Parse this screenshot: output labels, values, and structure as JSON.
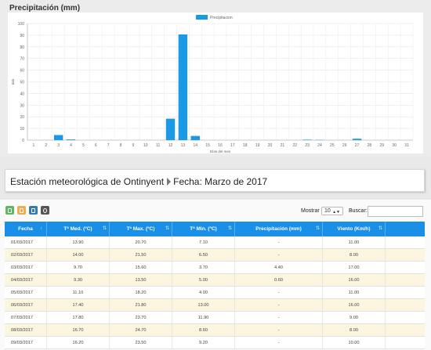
{
  "chart_data": {
    "type": "bar",
    "title": "Precipitación (mm)",
    "legend": {
      "label": "Precipitacion",
      "placement": "top-center"
    },
    "xlabel": "Días del mes",
    "ylabel": "mm",
    "ylim": [
      0,
      100
    ],
    "yticks": [
      0,
      10,
      20,
      30,
      40,
      50,
      60,
      70,
      80,
      90,
      100
    ],
    "grid": true,
    "color": "#1a9ae6",
    "categories": [
      "1",
      "2",
      "3",
      "4",
      "5",
      "6",
      "7",
      "8",
      "9",
      "10",
      "11",
      "12",
      "13",
      "14",
      "15",
      "16",
      "17",
      "18",
      "19",
      "20",
      "21",
      "22",
      "23",
      "24",
      "25",
      "26",
      "27",
      "28",
      "29",
      "30",
      "31"
    ],
    "values": [
      0,
      0,
      4.4,
      0.6,
      0,
      0,
      0,
      0,
      0,
      0,
      0,
      18.4,
      90.6,
      3.6,
      0,
      0,
      0,
      0,
      0,
      0,
      0,
      0,
      0.4,
      0.2,
      0,
      0,
      1.2,
      0,
      0,
      0,
      0
    ]
  },
  "station": {
    "name": "Estación meteorológica de Ontinyent",
    "fecha": "Fecha: Marzo de 2017"
  },
  "export_buttons": [
    {
      "icon": "excel-icon",
      "color": "#5cb85c"
    },
    {
      "icon": "csv-icon",
      "color": "#f0ad4e"
    },
    {
      "icon": "print-icon",
      "color": "#337ab7"
    },
    {
      "icon": "refresh-icon",
      "color": "#555555"
    }
  ],
  "controls": {
    "mostrar_label": "Mostrar",
    "mostrar_value": "10",
    "buscar_label": "Buscar:"
  },
  "table": {
    "columns": [
      "Fecha",
      "Tª Med. (ºC)",
      "Tª Max. (ºC)",
      "Tª Min. (ºC)",
      "Precipitación (mm)",
      "Viento (Km/h)"
    ],
    "rows": [
      [
        "01/03/2017",
        "13.90",
        "20.70",
        "7.10",
        "-",
        "11.00"
      ],
      [
        "02/03/2017",
        "14.00",
        "21.50",
        "6.50",
        "-",
        "8.00"
      ],
      [
        "03/03/2017",
        "9.70",
        "15.60",
        "3.70",
        "4.40",
        "17.00"
      ],
      [
        "04/03/2017",
        "9.30",
        "13.50",
        "5.00",
        "0.60",
        "16.00"
      ],
      [
        "05/03/2017",
        "11.10",
        "18.20",
        "4.00",
        "-",
        "11.00"
      ],
      [
        "06/03/2017",
        "17.40",
        "21.80",
        "13.00",
        "-",
        "16.00"
      ],
      [
        "07/03/2017",
        "17.80",
        "23.70",
        "11.90",
        "-",
        "9.00"
      ],
      [
        "08/03/2017",
        "16.70",
        "24.70",
        "8.60",
        "-",
        "8.00"
      ],
      [
        "09/03/2017",
        "16.20",
        "23.50",
        "9.20",
        "-",
        "10.00"
      ]
    ]
  }
}
